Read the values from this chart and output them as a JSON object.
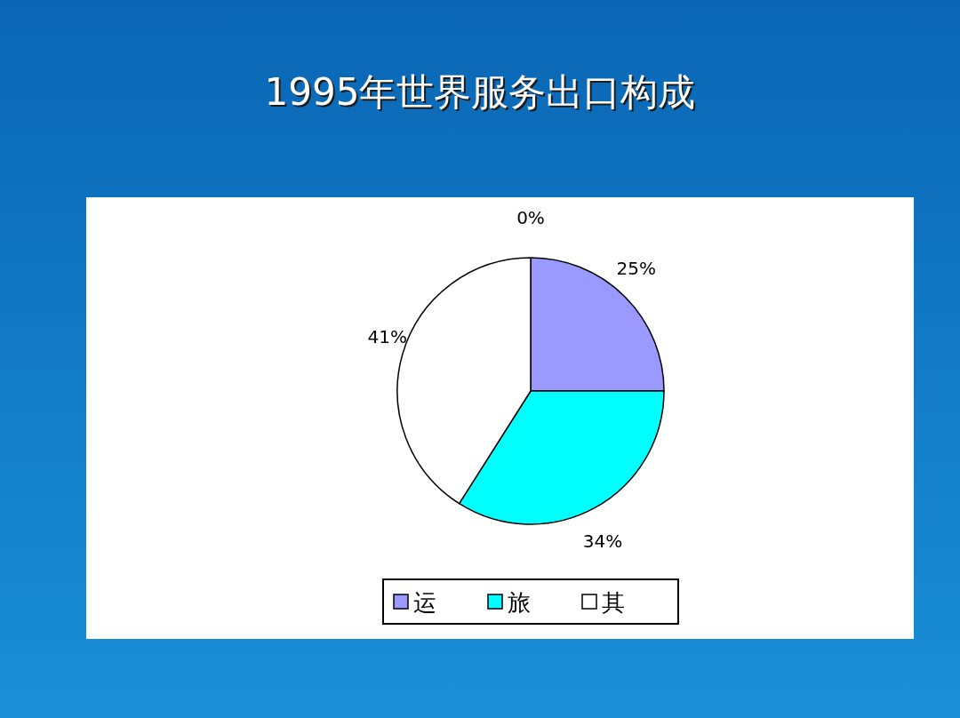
{
  "chart_data": {
    "type": "pie",
    "title": "1995年世界服务出口构成",
    "categories": [
      "运",
      "旅",
      "其"
    ],
    "values": [
      25,
      34,
      41
    ],
    "colors": [
      "#9999ff",
      "#00ffff",
      "#ffffff"
    ],
    "value_labels": [
      "25%",
      "34%",
      "41%"
    ],
    "annotations": [
      "0%"
    ],
    "legend": "bottom"
  }
}
